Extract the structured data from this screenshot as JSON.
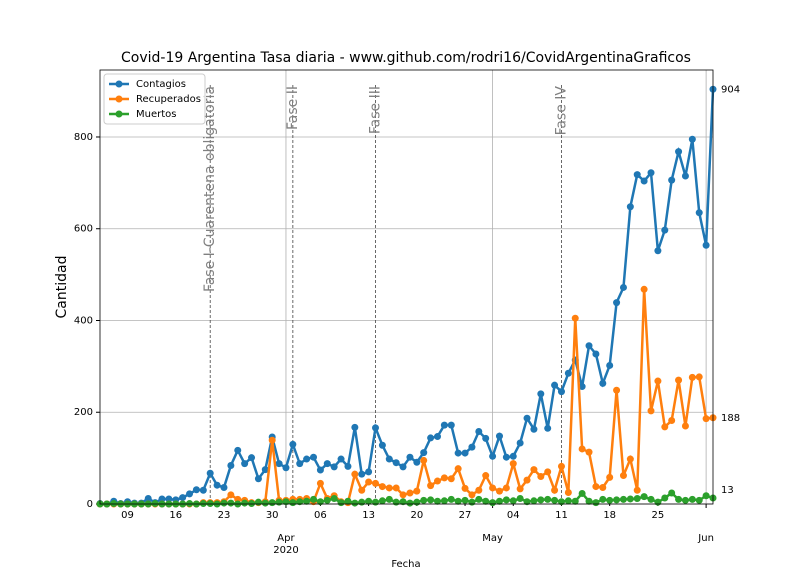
{
  "chart_data": {
    "type": "line",
    "title": "Covid-19 Argentina Tasa diaria - www.github.com/rodri16/CovidArgentinaGraficos",
    "xlabel": "Fecha",
    "ylabel": "Cantidad",
    "x": [
      "2020-03-05",
      "2020-03-06",
      "2020-03-07",
      "2020-03-08",
      "2020-03-09",
      "2020-03-10",
      "2020-03-11",
      "2020-03-12",
      "2020-03-13",
      "2020-03-14",
      "2020-03-15",
      "2020-03-16",
      "2020-03-17",
      "2020-03-18",
      "2020-03-19",
      "2020-03-20",
      "2020-03-21",
      "2020-03-22",
      "2020-03-23",
      "2020-03-24",
      "2020-03-25",
      "2020-03-26",
      "2020-03-27",
      "2020-03-28",
      "2020-03-29",
      "2020-03-30",
      "2020-03-31",
      "2020-04-01",
      "2020-04-02",
      "2020-04-03",
      "2020-04-04",
      "2020-04-05",
      "2020-04-06",
      "2020-04-07",
      "2020-04-08",
      "2020-04-09",
      "2020-04-10",
      "2020-04-11",
      "2020-04-12",
      "2020-04-13",
      "2020-04-14",
      "2020-04-15",
      "2020-04-16",
      "2020-04-17",
      "2020-04-18",
      "2020-04-19",
      "2020-04-20",
      "2020-04-21",
      "2020-04-22",
      "2020-04-23",
      "2020-04-24",
      "2020-04-25",
      "2020-04-26",
      "2020-04-27",
      "2020-04-28",
      "2020-04-29",
      "2020-04-30",
      "2020-05-01",
      "2020-05-02",
      "2020-05-03",
      "2020-05-04",
      "2020-05-05",
      "2020-05-06",
      "2020-05-07",
      "2020-05-08",
      "2020-05-09",
      "2020-05-10",
      "2020-05-11",
      "2020-05-12",
      "2020-05-13",
      "2020-05-14",
      "2020-05-15",
      "2020-05-16",
      "2020-05-17",
      "2020-05-18",
      "2020-05-19",
      "2020-05-20",
      "2020-05-21",
      "2020-05-22",
      "2020-05-23",
      "2020-05-24",
      "2020-05-25",
      "2020-05-26",
      "2020-05-27",
      "2020-05-28",
      "2020-05-29",
      "2020-05-30",
      "2020-05-31",
      "2020-06-01",
      "2020-06-02"
    ],
    "series": [
      {
        "name": "Contagios",
        "color": "#1f77b4",
        "values": [
          1,
          0,
          6,
          1,
          5,
          2,
          2,
          12,
          3,
          11,
          11,
          9,
          14,
          22,
          31,
          30,
          67,
          41,
          36,
          84,
          117,
          88,
          101,
          55,
          75,
          146,
          88,
          79,
          130,
          88,
          98,
          102,
          74,
          88,
          81,
          98,
          82,
          167,
          65,
          70,
          166,
          128,
          98,
          90,
          81,
          102,
          91,
          112,
          144,
          147,
          172,
          172,
          111,
          111,
          124,
          158,
          143,
          104,
          148,
          102,
          104,
          133,
          187,
          163,
          240,
          165,
          259,
          245,
          285,
          314,
          256,
          345,
          327,
          263,
          302,
          439,
          472,
          648,
          718,
          704,
          722,
          552,
          597,
          706,
          768,
          715,
          795,
          635,
          564,
          904
        ]
      },
      {
        "name": "Recuperados",
        "color": "#ff7f0e",
        "values": [
          0,
          0,
          0,
          0,
          0,
          0,
          0,
          0,
          0,
          0,
          0,
          0,
          0,
          0,
          0,
          3,
          3,
          3,
          5,
          20,
          10,
          8,
          3,
          3,
          5,
          139,
          8,
          8,
          10,
          10,
          12,
          5,
          45,
          12,
          18,
          5,
          3,
          65,
          30,
          48,
          45,
          38,
          35,
          35,
          20,
          24,
          28,
          95,
          40,
          50,
          57,
          55,
          77,
          34,
          20,
          30,
          62,
          35,
          28,
          35,
          88,
          33,
          52,
          75,
          60,
          70,
          30,
          82,
          25,
          405,
          120,
          113,
          38,
          36,
          58,
          248,
          62,
          98,
          30,
          468,
          203,
          268,
          168,
          182,
          270,
          170,
          276,
          277,
          186,
          188
        ]
      },
      {
        "name": "Muertos",
        "color": "#2ca02c",
        "values": [
          0,
          0,
          1,
          0,
          0,
          0,
          0,
          0,
          1,
          0,
          0,
          0,
          0,
          1,
          0,
          1,
          1,
          0,
          2,
          2,
          0,
          2,
          1,
          4,
          2,
          3,
          4,
          5,
          3,
          5,
          6,
          10,
          5,
          8,
          12,
          3,
          6,
          2,
          4,
          6,
          4,
          7,
          10,
          4,
          5,
          2,
          4,
          8,
          9,
          6,
          7,
          10,
          6,
          8,
          4,
          10,
          6,
          3,
          6,
          9,
          7,
          12,
          5,
          7,
          9,
          10,
          8,
          5,
          7,
          6,
          23,
          6,
          3,
          10,
          8,
          9,
          10,
          11,
          12,
          16,
          10,
          4,
          13,
          24,
          10,
          8,
          10,
          8,
          18,
          13
        ]
      }
    ],
    "xlim": [
      "2020-03-05",
      "2020-06-02"
    ],
    "ylim": [
      0,
      946
    ],
    "yticks": [
      0,
      200,
      400,
      600,
      800
    ],
    "xticks": [
      {
        "value": "2020-03-09",
        "label": "09"
      },
      {
        "value": "2020-03-16",
        "label": "16"
      },
      {
        "value": "2020-03-23",
        "label": "23"
      },
      {
        "value": "2020-03-30",
        "label": "30"
      },
      {
        "value": "2020-04-06",
        "label": "06"
      },
      {
        "value": "2020-04-13",
        "label": "13"
      },
      {
        "value": "2020-04-20",
        "label": "20"
      },
      {
        "value": "2020-04-27",
        "label": "27"
      },
      {
        "value": "2020-05-04",
        "label": "04"
      },
      {
        "value": "2020-05-11",
        "label": "11"
      },
      {
        "value": "2020-05-18",
        "label": "18"
      },
      {
        "value": "2020-05-25",
        "label": "25"
      }
    ],
    "xticks_major": [
      {
        "value": "2020-04-01",
        "label": "Apr",
        "year": "2020"
      },
      {
        "value": "2020-05-01",
        "label": "May"
      },
      {
        "value": "2020-06-01",
        "label": "Jun"
      }
    ],
    "annotations": [
      {
        "label": "Fase I-Cuarentena obligatoria",
        "x": "2020-03-21"
      },
      {
        "label": "Fase II",
        "x": "2020-04-02"
      },
      {
        "label": "Fase III",
        "x": "2020-04-14"
      },
      {
        "label": "Fase IV",
        "x": "2020-05-11"
      }
    ],
    "grid": true,
    "legend": "upper left"
  }
}
